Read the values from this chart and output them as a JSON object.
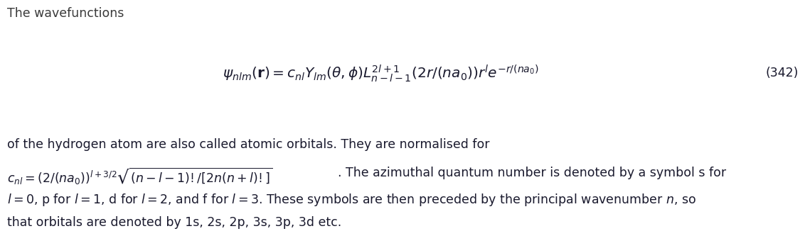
{
  "title_text": "The wavefunctions",
  "equation_number": "(342)",
  "paragraph_line1": "of the hydrogen atom are also called atomic orbitals. They are normalised for",
  "paragraph_line2_text": ". The azimuthal quantum number is denoted by a symbol s for",
  "paragraph_line4": "that orbitals are denoted by 1s, 2s, 2p, 3s, 3p, 3d etc.",
  "bg_color": "#ffffff",
  "text_color": "#1a1a2e",
  "font_size": 12.5,
  "eq_font_size": 14.5
}
